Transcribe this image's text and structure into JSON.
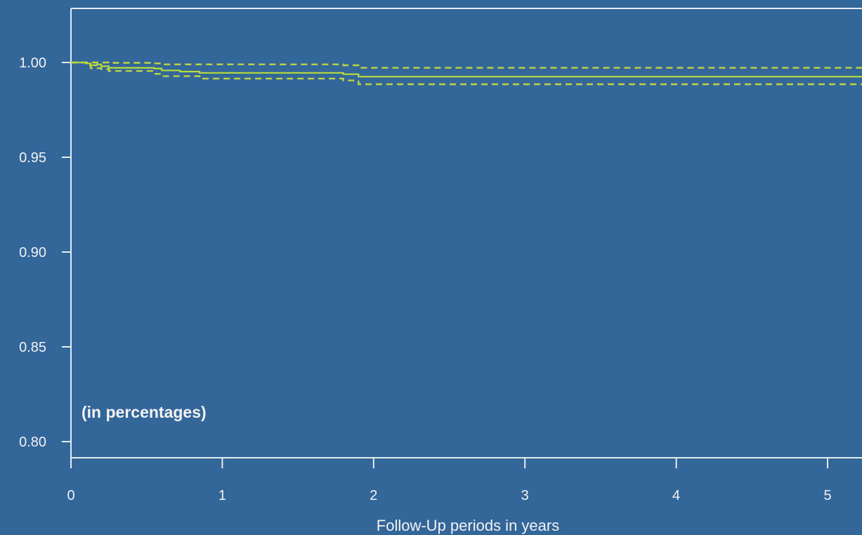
{
  "colors": {
    "background": "#336699",
    "axis": "#e6ecf2",
    "text": "#f2f2f2",
    "curve": "#b8dc3c",
    "confidence_band": "#c2d440"
  },
  "chart_data": {
    "type": "line",
    "title": "",
    "xlabel": "Follow-Up periods in years",
    "ylabel": "",
    "annotation": "(in percentages)",
    "xlim": [
      0,
      5.25
    ],
    "ylim": [
      0.792,
      1.03
    ],
    "xticks": [
      0,
      1,
      2,
      3,
      4,
      5
    ],
    "yticks": [
      0.8,
      0.85,
      0.9,
      0.95,
      1.0
    ],
    "xtick_labels": [
      "0",
      "1",
      "2",
      "3",
      "4",
      "5"
    ],
    "ytick_labels": [
      "0.80",
      "0.85",
      "0.90",
      "0.95",
      "1.00"
    ],
    "grid": false,
    "legend": "none",
    "step": true,
    "series": [
      {
        "role": "estimate",
        "style": "solid",
        "x": [
          0,
          0.1,
          0.13,
          0.17,
          0.2,
          0.25,
          0.55,
          0.6,
          0.72,
          0.85,
          1.8,
          1.9,
          5.25
        ],
        "y": [
          1.0,
          0.9995,
          0.9985,
          0.999,
          0.998,
          0.9972,
          0.9968,
          0.9958,
          0.9952,
          0.9945,
          0.9938,
          0.9925,
          0.9925
        ]
      },
      {
        "role": "upper",
        "style": "dashed",
        "x": [
          0,
          0.1,
          0.2,
          0.25,
          0.55,
          0.6,
          0.85,
          1.8,
          1.9,
          5.25
        ],
        "y": [
          1.0,
          1.0,
          1.0,
          0.9998,
          0.9995,
          0.999,
          0.999,
          0.9985,
          0.9972,
          0.9972
        ]
      },
      {
        "role": "lower",
        "style": "dashed",
        "x": [
          0,
          0.1,
          0.13,
          0.2,
          0.25,
          0.55,
          0.6,
          0.85,
          1.8,
          1.9,
          5.25
        ],
        "y": [
          1.0,
          0.9985,
          0.997,
          0.9965,
          0.9955,
          0.994,
          0.9928,
          0.9915,
          0.9905,
          0.9885,
          0.9885
        ]
      }
    ]
  }
}
